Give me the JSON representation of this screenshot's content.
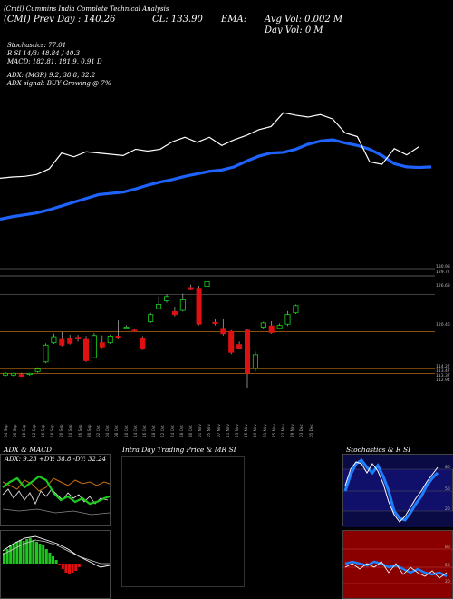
{
  "header": {
    "symbol_line": "(Cmtl) Cummins India Complete Technical Analysis",
    "prev_day": "(CMI) Prev Day  : 140.26",
    "cl": "CL: 133.90",
    "ema": "EMA:",
    "avg_vol": "Avg Vol: 0.002  M",
    "day_vol": "Day Vol: 0   M",
    "stochastics": "Stochastics: 77.01",
    "rsi": "R                SI 14/3: 48.84  / 40.3",
    "macd": "MACD: 182.81,  181.9, 0.91 D",
    "adx": "ADX:              (MGR) 9.2, 38.8, 32.2",
    "adx_signal": "ADX  signal:                        BUY Growing @ 7%"
  },
  "price_levels": [
    "130.98",
    "129.77",
    "126.68",
    "120.46",
    "114.27",
    "113.47",
    "113.37",
    "112.94"
  ],
  "dates": [
    "04 Sep",
    "06 Sep",
    "10 Sep",
    "12 Sep",
    "16 Sep",
    "18 Sep",
    "20 Sep",
    "24 Sep",
    "26 Sep",
    "30 Sep",
    "02 Oct",
    "04 Oct",
    "08 Oct",
    "10 Oct",
    "14 Oct",
    "16 Oct",
    "18 Oct",
    "22 Oct",
    "24 Oct",
    "28 Oct",
    "30 Oct",
    "01 Nov",
    "05 Nov",
    "07 Nov",
    "11 Nov",
    "13 Nov",
    "15 Nov",
    "19 Nov",
    "21 Nov",
    "25 Nov",
    "27 Nov",
    "29 Nov",
    "03 Dec",
    "05 Dec"
  ],
  "panels": {
    "adx_title": "ADX  & MACD",
    "adx_values": "ADX: 9.23  +DY: 38.8  -DY: 32.24",
    "intraday_title": "Intra  Day Trading Price  & MR                   SI",
    "stoch_title": "Stochastics & R                  SI"
  },
  "stoch_levels": [
    "80",
    "50",
    "20"
  ],
  "rsi_levels": [
    "80",
    "50",
    "20"
  ],
  "chart_data": {
    "type": "candlestick",
    "price_line": [
      120.0,
      120.2,
      120.3,
      120.6,
      121.5,
      124.0,
      123.4,
      124.2,
      124.0,
      123.8,
      123.6,
      124.6,
      124.3,
      124.6,
      125.8,
      126.5,
      125.7,
      126.5,
      125.2,
      126.1,
      126.8,
      127.7,
      128.2,
      130.4,
      130.0,
      129.7,
      130.1,
      129.4,
      127.2,
      126.6,
      122.6,
      122.2,
      124.7,
      123.7,
      125.0
    ],
    "ema_line": [
      113.5,
      113.9,
      114.2,
      114.5,
      115.0,
      115.6,
      116.2,
      116.8,
      117.4,
      117.6,
      117.8,
      118.3,
      118.9,
      119.4,
      119.8,
      120.3,
      120.7,
      121.1,
      121.3,
      121.8,
      122.7,
      123.5,
      124.0,
      124.1,
      124.6,
      125.4,
      125.9,
      126.1,
      125.6,
      125.2,
      124.6,
      123.6,
      122.3,
      121.8,
      121.7,
      121.8
    ],
    "candles": [
      {
        "o": 113.2,
        "c": 113.5,
        "h": 113.7,
        "l": 113.0
      },
      {
        "o": 113.2,
        "c": 113.5,
        "h": 113.6,
        "l": 113.0
      },
      {
        "o": 113.3,
        "c": 113.0,
        "h": 113.6,
        "l": 112.9
      },
      {
        "o": 113.3,
        "c": 113.5,
        "h": 113.6,
        "l": 113.1
      },
      {
        "o": 113.8,
        "c": 114.2,
        "h": 114.5,
        "l": 113.6
      },
      {
        "o": 115.4,
        "c": 118.2,
        "h": 118.5,
        "l": 115.2
      },
      {
        "o": 118.6,
        "c": 119.6,
        "h": 120.1,
        "l": 118.4
      },
      {
        "o": 119.3,
        "c": 118.2,
        "h": 120.4,
        "l": 118.0
      },
      {
        "o": 119.4,
        "c": 118.5,
        "h": 119.9,
        "l": 118.3
      },
      {
        "o": 119.5,
        "c": 119.3,
        "h": 119.9,
        "l": 118.8
      },
      {
        "o": 119.3,
        "c": 115.6,
        "h": 119.7,
        "l": 115.4
      },
      {
        "o": 116.1,
        "c": 119.8,
        "h": 120.2,
        "l": 116.0
      },
      {
        "o": 118.6,
        "c": 117.9,
        "h": 119.8,
        "l": 117.7
      },
      {
        "o": 118.6,
        "c": 119.7,
        "h": 119.9,
        "l": 118.4
      },
      {
        "o": 119.7,
        "c": 119.5,
        "h": 122.3,
        "l": 119.3
      },
      {
        "o": 121.1,
        "c": 121.2,
        "h": 121.5,
        "l": 120.8
      },
      {
        "o": 120.7,
        "c": 120.6,
        "h": 121.0,
        "l": 120.4
      },
      {
        "o": 119.4,
        "c": 117.6,
        "h": 119.7,
        "l": 117.4
      },
      {
        "o": 122.1,
        "c": 123.3,
        "h": 123.6,
        "l": 121.9
      },
      {
        "o": 124.3,
        "c": 125.0,
        "h": 126.3,
        "l": 124.1
      },
      {
        "o": 125.6,
        "c": 126.3,
        "h": 126.7,
        "l": 125.3
      },
      {
        "o": 123.8,
        "c": 123.3,
        "h": 124.6,
        "l": 123.0
      },
      {
        "o": 124.0,
        "c": 125.9,
        "h": 126.8,
        "l": 123.8
      },
      {
        "o": 127.8,
        "c": 127.7,
        "h": 128.3,
        "l": 127.5
      },
      {
        "o": 127.7,
        "c": 121.7,
        "h": 128.1,
        "l": 121.5
      },
      {
        "o": 128.0,
        "c": 128.8,
        "h": 129.8,
        "l": 127.7
      },
      {
        "o": 122.0,
        "c": 121.8,
        "h": 122.6,
        "l": 121.5
      },
      {
        "o": 121.0,
        "c": 120.1,
        "h": 122.5,
        "l": 119.8
      },
      {
        "o": 120.5,
        "c": 117.0,
        "h": 120.7,
        "l": 116.7
      },
      {
        "o": 118.3,
        "c": 117.7,
        "h": 118.8,
        "l": 117.5
      },
      {
        "o": 120.7,
        "c": 113.5,
        "h": 120.9,
        "l": 111.0
      },
      {
        "o": 114.3,
        "c": 116.6,
        "h": 117.1,
        "l": 113.8
      },
      {
        "o": 121.2,
        "c": 121.9,
        "h": 122.1,
        "l": 120.9
      },
      {
        "o": 121.4,
        "c": 120.3,
        "h": 122.2,
        "l": 120.1
      },
      {
        "o": 121.0,
        "c": 121.5,
        "h": 121.8,
        "l": 120.8
      },
      {
        "o": 121.7,
        "c": 123.3,
        "h": 123.9,
        "l": 121.4
      },
      {
        "o": 123.6,
        "c": 124.8,
        "h": 125.0,
        "l": 123.4
      }
    ]
  }
}
